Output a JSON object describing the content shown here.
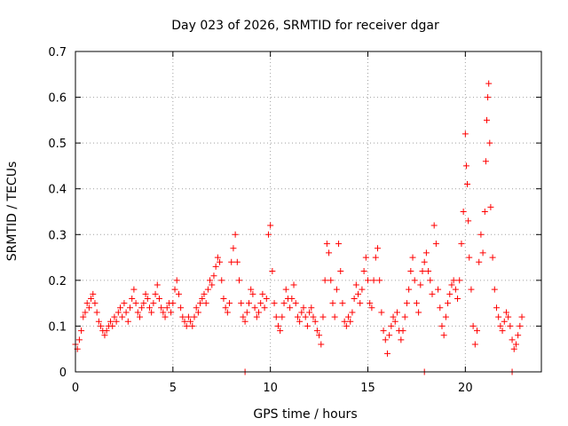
{
  "chart_data": {
    "type": "scatter",
    "title": "Day 023 of 2026, SRMTID for receiver dgar",
    "xlabel": "GPS time / hours",
    "ylabel": "SRMTID / TECUs",
    "xlim": [
      0,
      23.9
    ],
    "ylim": [
      0,
      0.7
    ],
    "xticks": [
      0,
      5,
      10,
      15,
      20
    ],
    "xtick_labels": [
      "0",
      "5",
      "10",
      "15",
      "20"
    ],
    "yticks": [
      0,
      0.1,
      0.2,
      0.3,
      0.4,
      0.5,
      0.6,
      0.7
    ],
    "ytick_labels": [
      "0",
      "0.1",
      "0.2",
      "0.3",
      "0.4",
      "0.5",
      "0.6",
      "0.7"
    ],
    "grid": true,
    "marker": "+",
    "color": "#ff0000",
    "series": [
      {
        "name": "SRMTID",
        "points": [
          [
            0.0,
            0.06
          ],
          [
            0.1,
            0.05
          ],
          [
            0.2,
            0.07
          ],
          [
            0.3,
            0.09
          ],
          [
            0.4,
            0.12
          ],
          [
            0.5,
            0.13
          ],
          [
            0.6,
            0.15
          ],
          [
            0.7,
            0.14
          ],
          [
            0.8,
            0.16
          ],
          [
            0.9,
            0.17
          ],
          [
            1.0,
            0.15
          ],
          [
            1.1,
            0.13
          ],
          [
            1.2,
            0.11
          ],
          [
            1.3,
            0.1
          ],
          [
            1.4,
            0.09
          ],
          [
            1.5,
            0.08
          ],
          [
            1.6,
            0.09
          ],
          [
            1.7,
            0.1
          ],
          [
            1.8,
            0.11
          ],
          [
            1.9,
            0.1
          ],
          [
            2.0,
            0.12
          ],
          [
            2.1,
            0.11
          ],
          [
            2.2,
            0.13
          ],
          [
            2.3,
            0.14
          ],
          [
            2.4,
            0.12
          ],
          [
            2.5,
            0.15
          ],
          [
            2.6,
            0.13
          ],
          [
            2.7,
            0.11
          ],
          [
            2.8,
            0.14
          ],
          [
            2.9,
            0.16
          ],
          [
            3.0,
            0.18
          ],
          [
            3.1,
            0.15
          ],
          [
            3.2,
            0.13
          ],
          [
            3.3,
            0.12
          ],
          [
            3.4,
            0.14
          ],
          [
            3.5,
            0.15
          ],
          [
            3.6,
            0.17
          ],
          [
            3.7,
            0.16
          ],
          [
            3.8,
            0.14
          ],
          [
            3.9,
            0.13
          ],
          [
            4.0,
            0.15
          ],
          [
            4.1,
            0.17
          ],
          [
            4.2,
            0.19
          ],
          [
            4.3,
            0.16
          ],
          [
            4.4,
            0.14
          ],
          [
            4.5,
            0.13
          ],
          [
            4.6,
            0.12
          ],
          [
            4.7,
            0.14
          ],
          [
            4.8,
            0.15
          ],
          [
            4.9,
            0.13
          ],
          [
            5.0,
            0.15
          ],
          [
            5.1,
            0.18
          ],
          [
            5.2,
            0.2
          ],
          [
            5.3,
            0.17
          ],
          [
            5.4,
            0.14
          ],
          [
            5.5,
            0.12
          ],
          [
            5.6,
            0.11
          ],
          [
            5.7,
            0.1
          ],
          [
            5.8,
            0.12
          ],
          [
            5.9,
            0.11
          ],
          [
            6.0,
            0.1
          ],
          [
            6.1,
            0.12
          ],
          [
            6.2,
            0.14
          ],
          [
            6.3,
            0.13
          ],
          [
            6.4,
            0.15
          ],
          [
            6.5,
            0.16
          ],
          [
            6.6,
            0.17
          ],
          [
            6.7,
            0.15
          ],
          [
            6.8,
            0.18
          ],
          [
            6.9,
            0.2
          ],
          [
            7.0,
            0.19
          ],
          [
            7.1,
            0.21
          ],
          [
            7.2,
            0.23
          ],
          [
            7.3,
            0.25
          ],
          [
            7.4,
            0.24
          ],
          [
            7.5,
            0.2
          ],
          [
            7.6,
            0.16
          ],
          [
            7.7,
            0.14
          ],
          [
            7.8,
            0.13
          ],
          [
            7.9,
            0.15
          ],
          [
            8.0,
            0.24
          ],
          [
            8.1,
            0.27
          ],
          [
            8.2,
            0.3
          ],
          [
            8.3,
            0.24
          ],
          [
            8.4,
            0.2
          ],
          [
            8.5,
            0.15
          ],
          [
            8.6,
            0.12
          ],
          [
            8.7,
            0.11
          ],
          [
            8.8,
            0.13
          ],
          [
            8.9,
            0.15
          ],
          [
            9.0,
            0.18
          ],
          [
            9.1,
            0.17
          ],
          [
            9.2,
            0.14
          ],
          [
            9.3,
            0.12
          ],
          [
            9.4,
            0.13
          ],
          [
            9.5,
            0.15
          ],
          [
            9.6,
            0.17
          ],
          [
            9.7,
            0.14
          ],
          [
            9.8,
            0.16
          ],
          [
            9.9,
            0.3
          ],
          [
            10.0,
            0.32
          ],
          [
            10.1,
            0.22
          ],
          [
            10.2,
            0.15
          ],
          [
            10.3,
            0.12
          ],
          [
            10.4,
            0.1
          ],
          [
            10.5,
            0.09
          ],
          [
            10.6,
            0.12
          ],
          [
            10.7,
            0.15
          ],
          [
            10.8,
            0.18
          ],
          [
            10.9,
            0.16
          ],
          [
            11.0,
            0.14
          ],
          [
            11.1,
            0.16
          ],
          [
            11.2,
            0.19
          ],
          [
            11.3,
            0.15
          ],
          [
            11.4,
            0.12
          ],
          [
            11.5,
            0.11
          ],
          [
            11.6,
            0.13
          ],
          [
            11.7,
            0.14
          ],
          [
            11.8,
            0.12
          ],
          [
            11.9,
            0.1
          ],
          [
            12.0,
            0.13
          ],
          [
            12.1,
            0.14
          ],
          [
            12.2,
            0.12
          ],
          [
            12.3,
            0.11
          ],
          [
            12.4,
            0.09
          ],
          [
            12.5,
            0.08
          ],
          [
            12.6,
            0.06
          ],
          [
            12.7,
            0.12
          ],
          [
            12.8,
            0.2
          ],
          [
            12.9,
            0.28
          ],
          [
            13.0,
            0.26
          ],
          [
            13.1,
            0.2
          ],
          [
            13.2,
            0.15
          ],
          [
            13.3,
            0.12
          ],
          [
            13.4,
            0.18
          ],
          [
            13.5,
            0.28
          ],
          [
            13.6,
            0.22
          ],
          [
            13.7,
            0.15
          ],
          [
            13.8,
            0.11
          ],
          [
            13.9,
            0.1
          ],
          [
            14.0,
            0.12
          ],
          [
            14.1,
            0.11
          ],
          [
            14.2,
            0.13
          ],
          [
            14.3,
            0.16
          ],
          [
            14.4,
            0.19
          ],
          [
            14.5,
            0.17
          ],
          [
            14.6,
            0.15
          ],
          [
            14.7,
            0.18
          ],
          [
            14.8,
            0.22
          ],
          [
            14.9,
            0.25
          ],
          [
            15.0,
            0.2
          ],
          [
            15.1,
            0.15
          ],
          [
            15.2,
            0.14
          ],
          [
            15.3,
            0.2
          ],
          [
            15.4,
            0.25
          ],
          [
            15.5,
            0.27
          ],
          [
            15.6,
            0.2
          ],
          [
            15.7,
            0.13
          ],
          [
            15.8,
            0.09
          ],
          [
            15.9,
            0.07
          ],
          [
            16.0,
            0.04
          ],
          [
            16.1,
            0.08
          ],
          [
            16.2,
            0.1
          ],
          [
            16.3,
            0.12
          ],
          [
            16.4,
            0.11
          ],
          [
            16.5,
            0.13
          ],
          [
            16.6,
            0.09
          ],
          [
            16.7,
            0.07
          ],
          [
            16.8,
            0.09
          ],
          [
            16.9,
            0.12
          ],
          [
            17.0,
            0.15
          ],
          [
            17.1,
            0.18
          ],
          [
            17.2,
            0.22
          ],
          [
            17.3,
            0.25
          ],
          [
            17.4,
            0.2
          ],
          [
            17.5,
            0.15
          ],
          [
            17.6,
            0.13
          ],
          [
            17.7,
            0.19
          ],
          [
            17.8,
            0.22
          ],
          [
            17.9,
            0.24
          ],
          [
            18.0,
            0.26
          ],
          [
            18.1,
            0.22
          ],
          [
            18.2,
            0.2
          ],
          [
            18.3,
            0.17
          ],
          [
            18.4,
            0.32
          ],
          [
            18.5,
            0.28
          ],
          [
            18.6,
            0.18
          ],
          [
            18.7,
            0.14
          ],
          [
            18.8,
            0.1
          ],
          [
            18.9,
            0.08
          ],
          [
            19.0,
            0.12
          ],
          [
            19.1,
            0.15
          ],
          [
            19.2,
            0.17
          ],
          [
            19.3,
            0.19
          ],
          [
            19.4,
            0.2
          ],
          [
            19.5,
            0.18
          ],
          [
            19.6,
            0.16
          ],
          [
            19.7,
            0.2
          ],
          [
            19.8,
            0.28
          ],
          [
            19.9,
            0.35
          ],
          [
            20.0,
            0.52
          ],
          [
            20.05,
            0.45
          ],
          [
            20.1,
            0.41
          ],
          [
            20.15,
            0.33
          ],
          [
            20.2,
            0.25
          ],
          [
            20.3,
            0.18
          ],
          [
            20.4,
            0.1
          ],
          [
            20.5,
            0.06
          ],
          [
            20.6,
            0.09
          ],
          [
            20.7,
            0.24
          ],
          [
            20.8,
            0.3
          ],
          [
            20.9,
            0.26
          ],
          [
            21.0,
            0.35
          ],
          [
            21.05,
            0.46
          ],
          [
            21.1,
            0.55
          ],
          [
            21.15,
            0.6
          ],
          [
            21.2,
            0.63
          ],
          [
            21.25,
            0.5
          ],
          [
            21.3,
            0.36
          ],
          [
            21.4,
            0.25
          ],
          [
            21.5,
            0.18
          ],
          [
            21.6,
            0.14
          ],
          [
            21.7,
            0.12
          ],
          [
            21.8,
            0.1
          ],
          [
            21.9,
            0.09
          ],
          [
            22.0,
            0.11
          ],
          [
            22.1,
            0.13
          ],
          [
            22.2,
            0.12
          ],
          [
            22.3,
            0.1
          ],
          [
            22.4,
            0.07
          ],
          [
            22.5,
            0.05
          ],
          [
            22.6,
            0.06
          ],
          [
            22.7,
            0.08
          ],
          [
            22.8,
            0.1
          ],
          [
            22.9,
            0.12
          ]
        ],
        "zero_points": [
          8.7,
          17.9,
          22.4
        ]
      }
    ]
  }
}
